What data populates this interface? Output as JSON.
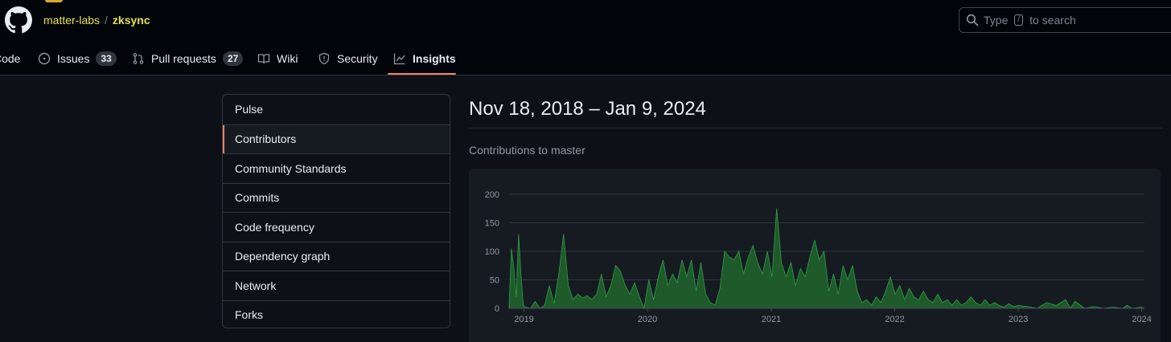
{
  "header": {
    "owner": "matter-labs",
    "separator": "/",
    "repo": "zksync",
    "search": {
      "prefix": "Type",
      "key": "/",
      "suffix": "to search"
    }
  },
  "tabs": [
    {
      "label": "Code",
      "icon": "code-icon"
    },
    {
      "label": "Issues",
      "icon": "issue-opened-icon",
      "count": "33"
    },
    {
      "label": "Pull requests",
      "icon": "git-pull-request-icon",
      "count": "27"
    },
    {
      "label": "Wiki",
      "icon": "book-icon"
    },
    {
      "label": "Security",
      "icon": "shield-icon"
    },
    {
      "label": "Insights",
      "icon": "graph-icon",
      "active": true
    }
  ],
  "sidebar": {
    "items": [
      {
        "label": "Pulse"
      },
      {
        "label": "Contributors",
        "selected": true
      },
      {
        "label": "Community Standards"
      },
      {
        "label": "Commits"
      },
      {
        "label": "Code frequency"
      },
      {
        "label": "Dependency graph"
      },
      {
        "label": "Network"
      },
      {
        "label": "Forks"
      }
    ]
  },
  "main": {
    "date_range": "Nov 18, 2018 – Jan 9, 2024",
    "subtitle": "Contributions to master"
  },
  "colors": {
    "accent": "#f78166",
    "area_fill": "#1f5a2b",
    "area_stroke": "#2ea043",
    "owner_repo": "#e3e24f"
  },
  "chart_data": {
    "type": "area",
    "ylim": [
      0,
      200
    ],
    "yticks": [
      "0",
      "50",
      "100",
      "150",
      "200"
    ],
    "xticks": [
      "2019",
      "2020",
      "2021",
      "2022",
      "2023",
      "2024"
    ],
    "x": [
      "2018-11-18",
      "2018-11-25",
      "2018-12-02",
      "2018-12-09",
      "2018-12-16",
      "2018-12-23",
      "2018-12-30",
      "2019-01-06",
      "2019-01-20",
      "2019-02-03",
      "2019-02-17",
      "2019-03-03",
      "2019-03-17",
      "2019-03-31",
      "2019-04-14",
      "2019-04-28",
      "2019-05-12",
      "2019-05-26",
      "2019-06-09",
      "2019-06-23",
      "2019-07-07",
      "2019-07-21",
      "2019-08-04",
      "2019-08-18",
      "2019-09-01",
      "2019-09-15",
      "2019-09-29",
      "2019-10-13",
      "2019-10-27",
      "2019-11-10",
      "2019-11-24",
      "2019-12-08",
      "2019-12-22",
      "2020-01-05",
      "2020-01-19",
      "2020-02-02",
      "2020-02-16",
      "2020-03-01",
      "2020-03-15",
      "2020-03-29",
      "2020-04-12",
      "2020-04-26",
      "2020-05-10",
      "2020-05-24",
      "2020-06-07",
      "2020-06-21",
      "2020-07-05",
      "2020-07-19",
      "2020-08-02",
      "2020-08-16",
      "2020-08-30",
      "2020-09-13",
      "2020-09-27",
      "2020-10-11",
      "2020-10-25",
      "2020-11-08",
      "2020-11-22",
      "2020-12-06",
      "2020-12-20",
      "2021-01-03",
      "2021-01-17",
      "2021-01-31",
      "2021-02-14",
      "2021-02-28",
      "2021-03-14",
      "2021-03-28",
      "2021-04-11",
      "2021-04-25",
      "2021-05-09",
      "2021-05-23",
      "2021-06-06",
      "2021-06-20",
      "2021-07-04",
      "2021-07-18",
      "2021-08-01",
      "2021-08-15",
      "2021-08-29",
      "2021-09-12",
      "2021-09-26",
      "2021-10-10",
      "2021-10-24",
      "2021-11-07",
      "2021-11-21",
      "2021-12-05",
      "2021-12-19",
      "2022-01-02",
      "2022-01-16",
      "2022-01-30",
      "2022-02-13",
      "2022-02-27",
      "2022-03-13",
      "2022-03-27",
      "2022-04-10",
      "2022-04-24",
      "2022-05-08",
      "2022-05-22",
      "2022-06-05",
      "2022-06-19",
      "2022-07-03",
      "2022-07-17",
      "2022-07-31",
      "2022-08-14",
      "2022-08-28",
      "2022-09-11",
      "2022-09-25",
      "2022-10-09",
      "2022-10-23",
      "2022-11-06",
      "2022-11-20",
      "2022-12-04",
      "2022-12-18",
      "2023-01-01",
      "2023-01-29",
      "2023-02-26",
      "2023-03-26",
      "2023-04-23",
      "2023-05-21",
      "2023-06-04",
      "2023-06-18",
      "2023-07-16",
      "2023-08-13",
      "2023-09-10",
      "2023-10-08",
      "2023-11-05",
      "2023-11-19",
      "2023-12-03",
      "2023-12-31",
      "2024-01-09"
    ],
    "values": [
      0,
      105,
      70,
      20,
      130,
      60,
      5,
      2,
      0,
      12,
      0,
      5,
      40,
      8,
      60,
      130,
      40,
      15,
      25,
      18,
      22,
      15,
      25,
      60,
      20,
      40,
      75,
      65,
      40,
      25,
      45,
      20,
      0,
      50,
      15,
      55,
      85,
      40,
      60,
      45,
      85,
      55,
      85,
      30,
      80,
      25,
      10,
      5,
      35,
      100,
      90,
      85,
      100,
      60,
      90,
      110,
      80,
      60,
      100,
      55,
      175,
      80,
      55,
      80,
      40,
      70,
      55,
      90,
      120,
      85,
      100,
      30,
      60,
      25,
      75,
      50,
      75,
      30,
      10,
      15,
      5,
      20,
      10,
      30,
      55,
      25,
      40,
      15,
      35,
      20,
      15,
      30,
      15,
      10,
      25,
      10,
      15,
      5,
      15,
      5,
      10,
      20,
      10,
      5,
      15,
      5,
      10,
      5,
      2,
      8,
      3,
      5,
      3,
      0,
      10,
      5,
      15,
      0,
      12,
      0,
      3,
      0,
      2,
      0,
      5,
      0,
      2,
      0
    ]
  }
}
